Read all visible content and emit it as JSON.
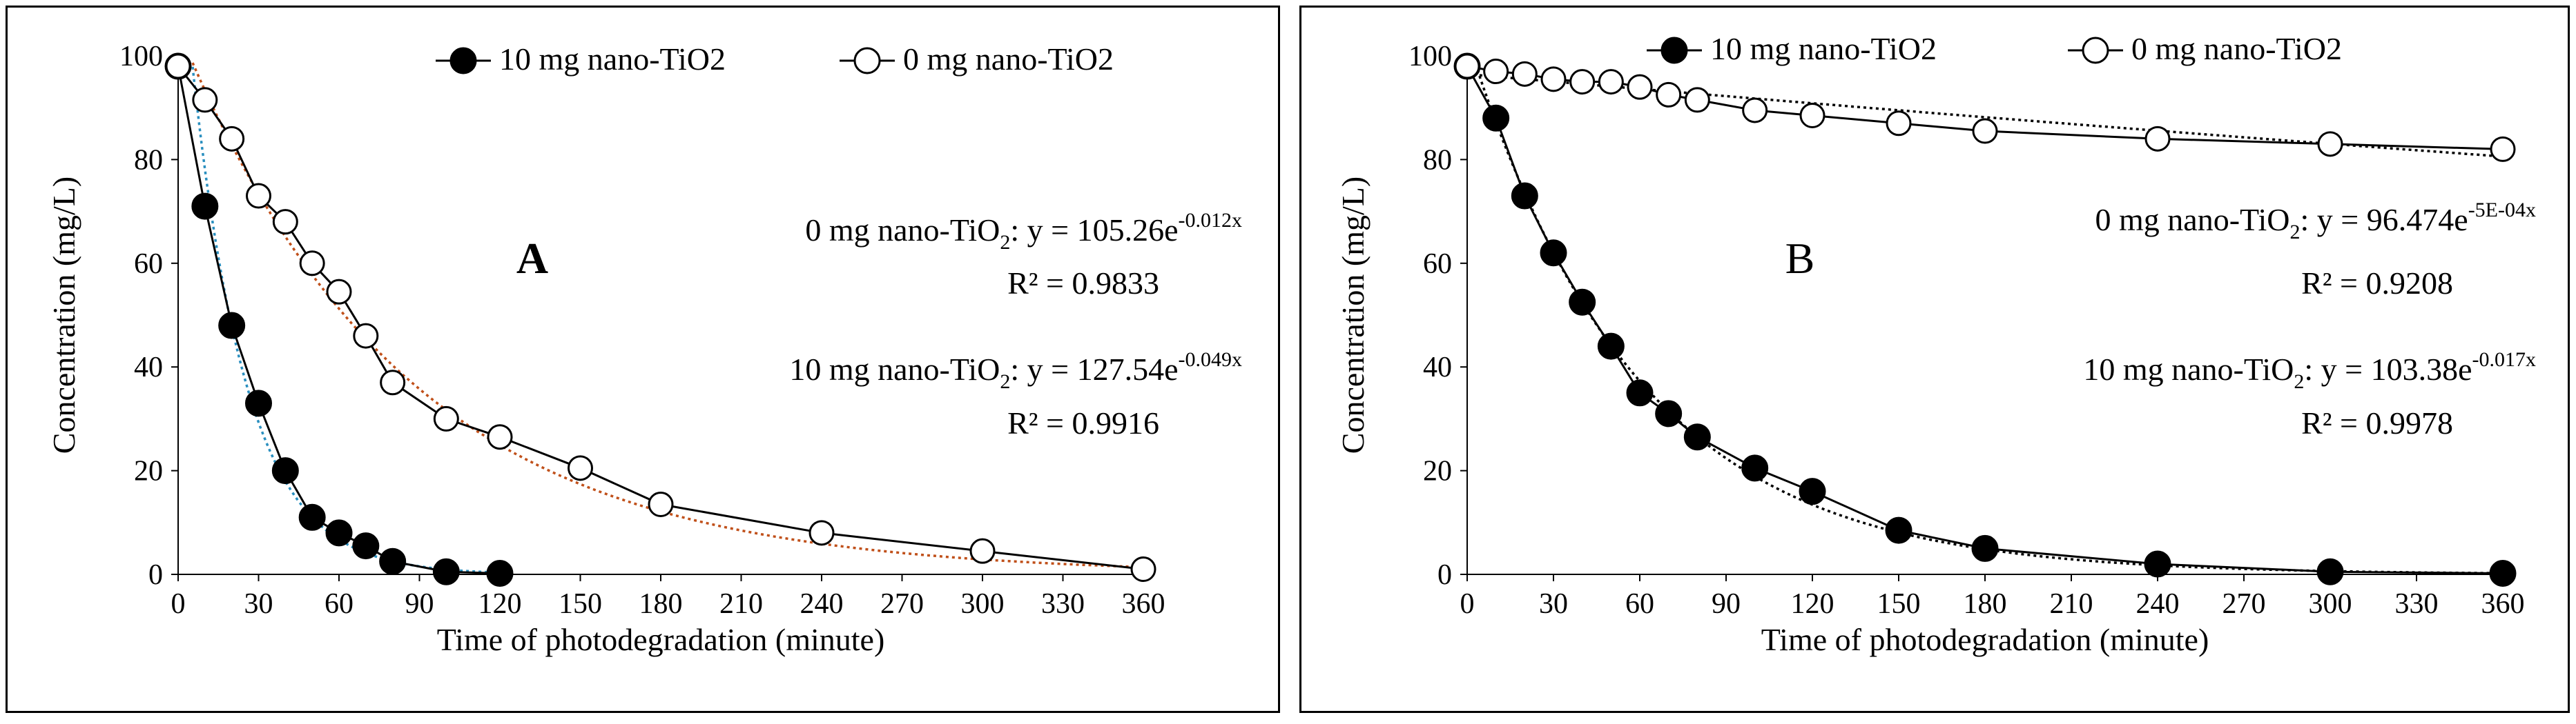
{
  "chart_data": [
    {
      "type": "scatter",
      "panel_label": "A",
      "xlabel": "Time of photodegradation (minute)",
      "ylabel": "Concentration (mg/L)",
      "xlim": [
        0,
        360
      ],
      "ylim": [
        0,
        100
      ],
      "x_ticks": [
        0,
        30,
        60,
        90,
        120,
        150,
        180,
        210,
        240,
        270,
        300,
        330,
        360
      ],
      "y_ticks": [
        0,
        20,
        40,
        60,
        80,
        100
      ],
      "legend_position": "top-right",
      "series": [
        {
          "name": "10 mg nano-TiO2",
          "marker": "filled-circle",
          "x": [
            0,
            10,
            20,
            30,
            40,
            50,
            60,
            70,
            80,
            100,
            120
          ],
          "y": [
            98,
            71,
            48,
            33,
            20,
            11,
            8,
            5.5,
            2.5,
            0.5,
            0.2
          ],
          "trend": {
            "a": 127.54,
            "b": -0.049,
            "color": "#2a8fbf",
            "x_range": [
              0,
              120
            ]
          }
        },
        {
          "name": "0 mg nano-TiO2",
          "marker": "open-circle",
          "x": [
            0,
            10,
            20,
            30,
            40,
            50,
            60,
            70,
            80,
            100,
            120,
            150,
            180,
            240,
            300,
            360
          ],
          "y": [
            98,
            91.5,
            84,
            73,
            68,
            60,
            54.5,
            46,
            37,
            30,
            26.5,
            20.5,
            13.5,
            8,
            4.5,
            1
          ],
          "trend": {
            "a": 105.26,
            "b": -0.012,
            "color": "#c0501a",
            "x_range": [
              0,
              360
            ]
          }
        }
      ],
      "annotations": [
        {
          "prefix": "0 mg nano-TiO",
          "sub": "2",
          "mid": ": y = ",
          "base": "105.26e",
          "exp": "-0.012x",
          "r2": "R² = 0.9833"
        },
        {
          "prefix": "10 mg nano-TiO",
          "sub": "2",
          "mid": ": y = ",
          "base": "127.54e",
          "exp": "-0.049x",
          "r2": "R² = 0.9916"
        }
      ]
    },
    {
      "type": "scatter",
      "panel_label": "B",
      "xlabel": "Time of photodegradation (minute)",
      "ylabel": "Concentration (mg/L)",
      "xlim": [
        0,
        360
      ],
      "ylim": [
        0,
        100
      ],
      "x_ticks": [
        0,
        30,
        60,
        90,
        120,
        150,
        180,
        210,
        240,
        270,
        300,
        330,
        360
      ],
      "y_ticks": [
        0,
        20,
        40,
        60,
        80,
        100
      ],
      "legend_position": "top-right",
      "series": [
        {
          "name": "10 mg nano-TiO2",
          "marker": "filled-circle",
          "x": [
            0,
            10,
            20,
            30,
            40,
            50,
            60,
            70,
            80,
            100,
            120,
            150,
            180,
            240,
            300,
            360
          ],
          "y": [
            98,
            88,
            73,
            62,
            52.5,
            44,
            35,
            31,
            26.5,
            20.5,
            16,
            8.5,
            5,
            2,
            0.5,
            0.2
          ],
          "trend": {
            "a": 103.38,
            "b": -0.017,
            "color": "#000000",
            "x_range": [
              0,
              360
            ]
          }
        },
        {
          "name": "0 mg nano-TiO2",
          "marker": "open-circle",
          "x": [
            0,
            10,
            20,
            30,
            40,
            50,
            60,
            70,
            80,
            100,
            120,
            150,
            180,
            240,
            300,
            360
          ],
          "y": [
            98,
            97,
            96.5,
            95.5,
            95,
            95,
            94,
            92.5,
            91.5,
            89.5,
            88.5,
            87,
            85.5,
            84,
            83,
            82
          ],
          "trend": {
            "a": 96.474,
            "b": -0.0005,
            "color": "#000000",
            "x_range": [
              0,
              360
            ]
          }
        }
      ],
      "annotations": [
        {
          "prefix": "0 mg nano-TiO",
          "sub": "2",
          "mid": ": y = ",
          "base": "96.474e",
          "exp": "-5E-04x",
          "r2": "R² = 0.9208"
        },
        {
          "prefix": "10 mg nano-TiO",
          "sub": "2",
          "mid": ": y = ",
          "base": "103.38e",
          "exp": "-0.017x",
          "r2": "R² = 0.9978"
        }
      ]
    }
  ]
}
